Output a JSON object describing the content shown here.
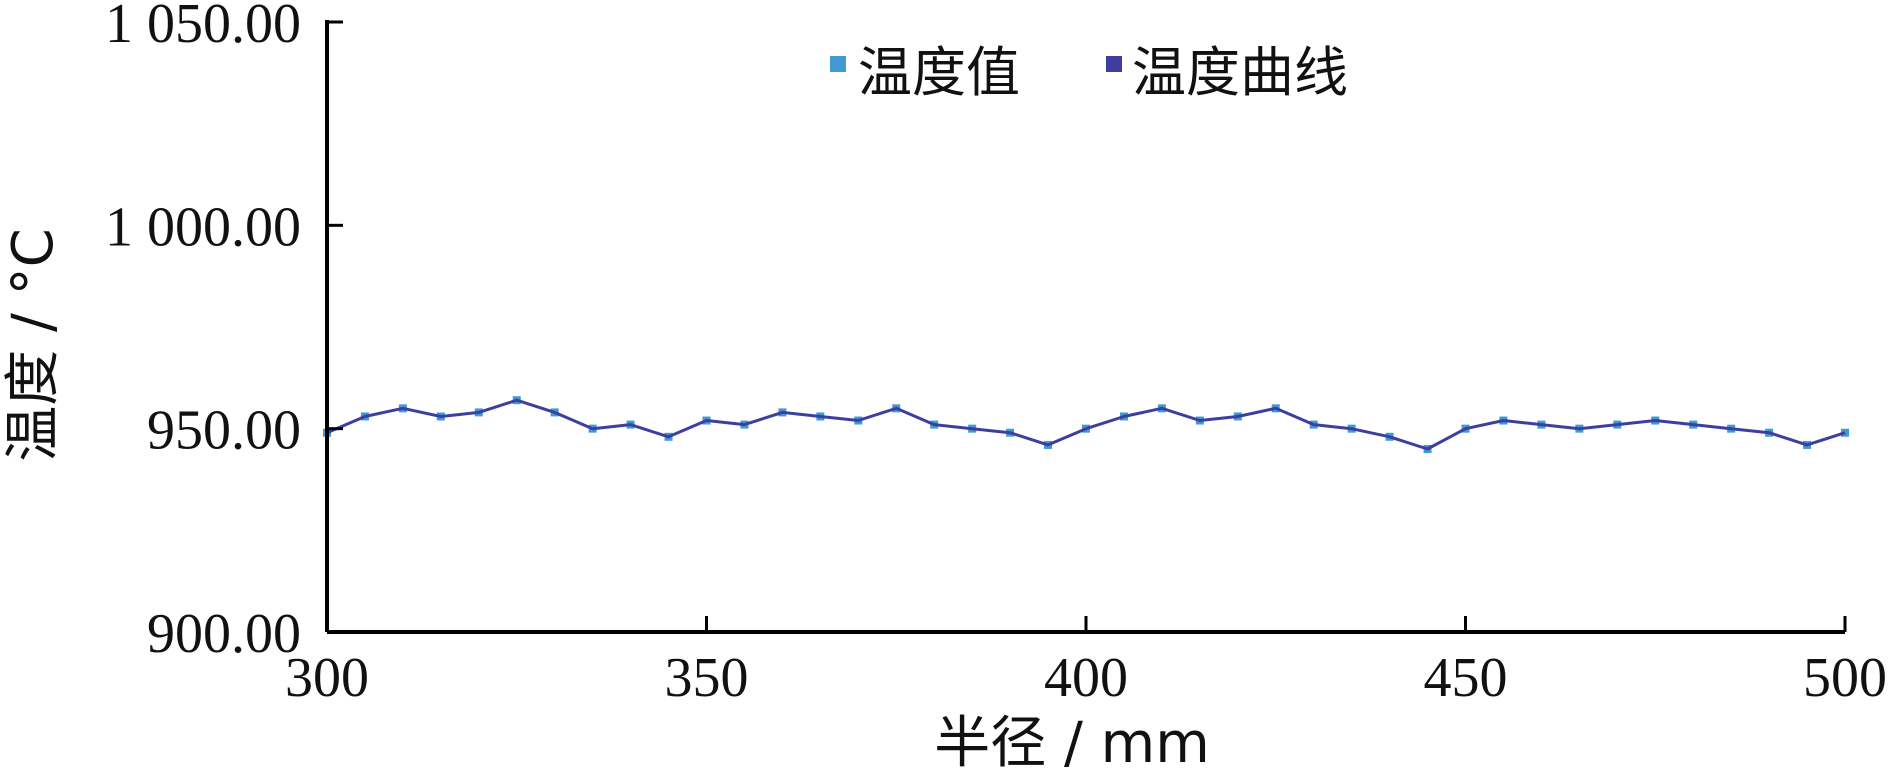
{
  "chart_data": {
    "type": "line",
    "title": "",
    "xlabel": "半径 / mm",
    "ylabel": "温度 / °C",
    "xlim": [
      300,
      500
    ],
    "ylim": [
      900,
      1050
    ],
    "x_ticks": [
      300,
      350,
      400,
      450,
      500
    ],
    "y_ticks": [
      900,
      950,
      1000,
      1050
    ],
    "x_tick_labels": [
      "300",
      "350",
      "400",
      "450",
      "500"
    ],
    "y_tick_labels": [
      "900.00",
      "950.00",
      "1 000.00",
      "1 050.00"
    ],
    "grid": false,
    "legend_position": "top-center",
    "series": [
      {
        "name": "温度值",
        "color": "#3f9ad6",
        "style": "markers",
        "x": [
          300,
          305,
          310,
          315,
          320,
          325,
          330,
          335,
          340,
          345,
          350,
          355,
          360,
          365,
          370,
          375,
          380,
          385,
          390,
          395,
          400,
          405,
          410,
          415,
          420,
          425,
          430,
          435,
          440,
          445,
          450,
          455,
          460,
          465,
          470,
          475,
          480,
          485,
          490,
          495,
          500
        ],
        "values": [
          949,
          953,
          955,
          953,
          954,
          957,
          954,
          950,
          951,
          948,
          952,
          951,
          954,
          953,
          952,
          955,
          951,
          950,
          949,
          946,
          950,
          953,
          955,
          952,
          953,
          955,
          951,
          950,
          948,
          945,
          950,
          952,
          951,
          950,
          951,
          952,
          951,
          950,
          949,
          946,
          949
        ]
      },
      {
        "name": "温度曲线",
        "color": "#3c3fa0",
        "style": "line",
        "x": [
          300,
          305,
          310,
          315,
          320,
          325,
          330,
          335,
          340,
          345,
          350,
          355,
          360,
          365,
          370,
          375,
          380,
          385,
          390,
          395,
          400,
          405,
          410,
          415,
          420,
          425,
          430,
          435,
          440,
          445,
          450,
          455,
          460,
          465,
          470,
          475,
          480,
          485,
          490,
          495,
          500
        ],
        "values": [
          949,
          953,
          955,
          953,
          954,
          957,
          954,
          950,
          951,
          948,
          952,
          951,
          954,
          953,
          952,
          955,
          951,
          950,
          949,
          946,
          950,
          953,
          955,
          952,
          953,
          955,
          951,
          950,
          948,
          945,
          950,
          952,
          951,
          950,
          951,
          952,
          951,
          950,
          949,
          946,
          949
        ]
      }
    ]
  }
}
